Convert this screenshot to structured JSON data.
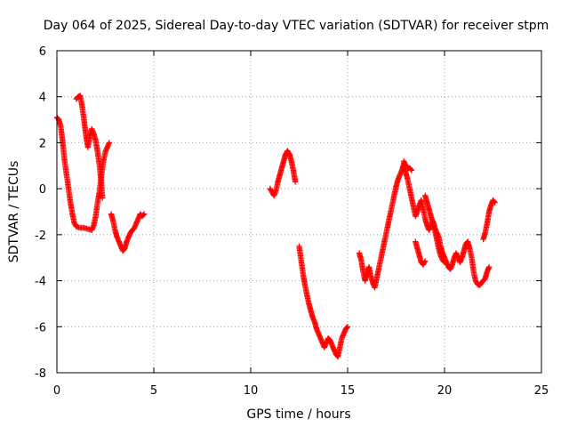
{
  "chart_data": {
    "type": "scatter",
    "title": "Day 064 of 2025, Sidereal Day-to-day VTEC variation (SDTVAR) for receiver stpm",
    "xlabel": "GPS time / hours",
    "ylabel": "SDTVAR / TECUs",
    "xlim": [
      0,
      25
    ],
    "ylim": [
      -8,
      6
    ],
    "xticks": [
      0,
      5,
      10,
      15,
      20,
      25
    ],
    "yticks": [
      -8,
      -6,
      -4,
      -2,
      0,
      2,
      4,
      6
    ],
    "xtick_labels": [
      "0",
      "5",
      "10",
      "15",
      "20",
      "25"
    ],
    "ytick_labels": [
      "-8",
      "-6",
      "-4",
      "-2",
      "0",
      "2",
      "4",
      "6"
    ],
    "grid": true,
    "marker": "+",
    "color": "#ff0000",
    "series": [
      {
        "name": "SDTVAR",
        "segments": [
          [
            [
              0.0,
              3.1
            ],
            [
              0.1,
              3.0
            ],
            [
              0.2,
              2.7
            ],
            [
              0.3,
              2.0
            ],
            [
              0.4,
              1.2
            ],
            [
              0.5,
              0.6
            ],
            [
              0.6,
              0.0
            ],
            [
              0.7,
              -0.6
            ],
            [
              0.8,
              -1.1
            ],
            [
              0.9,
              -1.5
            ],
            [
              1.0,
              -1.65
            ],
            [
              1.2,
              -1.7
            ],
            [
              1.4,
              -1.7
            ],
            [
              1.6,
              -1.75
            ],
            [
              1.8,
              -1.8
            ],
            [
              1.9,
              -1.6
            ],
            [
              2.0,
              -1.2
            ],
            [
              2.1,
              -0.6
            ],
            [
              2.2,
              -0.1
            ],
            [
              2.3,
              0.6
            ],
            [
              2.4,
              1.2
            ],
            [
              2.5,
              1.6
            ],
            [
              2.6,
              1.8
            ],
            [
              2.7,
              2.0
            ]
          ],
          [
            [
              1.0,
              3.9
            ],
            [
              1.1,
              4.0
            ],
            [
              1.2,
              4.05
            ],
            [
              1.3,
              3.6
            ],
            [
              1.4,
              3.0
            ],
            [
              1.5,
              2.3
            ],
            [
              1.6,
              1.8
            ],
            [
              1.7,
              2.3
            ],
            [
              1.8,
              2.6
            ],
            [
              1.9,
              2.4
            ],
            [
              2.0,
              2.1
            ],
            [
              2.1,
              1.6
            ],
            [
              2.2,
              1.0
            ],
            [
              2.3,
              0.2
            ],
            [
              2.35,
              -0.4
            ]
          ],
          [
            [
              2.8,
              -1.1
            ],
            [
              2.9,
              -1.4
            ],
            [
              3.0,
              -1.8
            ],
            [
              3.1,
              -2.1
            ],
            [
              3.2,
              -2.3
            ],
            [
              3.3,
              -2.5
            ],
            [
              3.4,
              -2.7
            ],
            [
              3.5,
              -2.6
            ],
            [
              3.6,
              -2.3
            ],
            [
              3.7,
              -2.1
            ],
            [
              3.8,
              -1.9
            ],
            [
              3.9,
              -1.8
            ],
            [
              4.0,
              -1.7
            ],
            [
              4.1,
              -1.5
            ],
            [
              4.2,
              -1.3
            ],
            [
              4.3,
              -1.1
            ],
            [
              4.4,
              -1.2
            ],
            [
              4.5,
              -1.1
            ]
          ],
          [
            [
              11.0,
              0.0
            ],
            [
              11.1,
              -0.15
            ],
            [
              11.2,
              -0.3
            ],
            [
              11.3,
              -0.1
            ],
            [
              11.4,
              0.3
            ],
            [
              11.5,
              0.6
            ],
            [
              11.6,
              0.9
            ],
            [
              11.7,
              1.2
            ],
            [
              11.8,
              1.5
            ],
            [
              11.9,
              1.65
            ],
            [
              12.0,
              1.5
            ],
            [
              12.1,
              1.2
            ],
            [
              12.2,
              0.8
            ],
            [
              12.3,
              0.3
            ]
          ],
          [
            [
              12.5,
              -2.5
            ],
            [
              12.6,
              -3.1
            ],
            [
              12.7,
              -3.7
            ],
            [
              12.8,
              -4.2
            ],
            [
              12.9,
              -4.6
            ],
            [
              13.0,
              -5.0
            ],
            [
              13.1,
              -5.3
            ],
            [
              13.2,
              -5.6
            ],
            [
              13.3,
              -5.8
            ],
            [
              13.4,
              -6.1
            ],
            [
              13.5,
              -6.3
            ],
            [
              13.6,
              -6.5
            ],
            [
              13.7,
              -6.7
            ],
            [
              13.8,
              -6.9
            ],
            [
              13.9,
              -6.7
            ],
            [
              14.0,
              -6.5
            ],
            [
              14.1,
              -6.6
            ],
            [
              14.2,
              -6.8
            ],
            [
              14.3,
              -7.0
            ],
            [
              14.4,
              -7.2
            ],
            [
              14.5,
              -7.3
            ],
            [
              14.6,
              -6.9
            ],
            [
              14.7,
              -6.5
            ],
            [
              14.8,
              -6.3
            ],
            [
              14.9,
              -6.1
            ],
            [
              15.0,
              -6.0
            ]
          ],
          [
            [
              15.6,
              -2.8
            ],
            [
              15.7,
              -3.1
            ],
            [
              15.8,
              -3.6
            ],
            [
              15.9,
              -4.0
            ],
            [
              16.0,
              -3.7
            ],
            [
              16.1,
              -3.4
            ],
            [
              16.2,
              -3.8
            ],
            [
              16.3,
              -4.1
            ],
            [
              16.4,
              -4.3
            ],
            [
              16.5,
              -3.9
            ],
            [
              16.6,
              -3.5
            ],
            [
              16.7,
              -3.1
            ],
            [
              16.8,
              -2.7
            ],
            [
              16.9,
              -2.3
            ],
            [
              17.0,
              -1.9
            ],
            [
              17.1,
              -1.5
            ],
            [
              17.2,
              -1.1
            ],
            [
              17.3,
              -0.7
            ],
            [
              17.4,
              -0.3
            ],
            [
              17.5,
              0.1
            ],
            [
              17.6,
              0.4
            ],
            [
              17.7,
              0.6
            ],
            [
              17.8,
              0.8
            ],
            [
              17.9,
              1.1
            ],
            [
              18.0,
              0.7
            ],
            [
              18.1,
              0.4
            ],
            [
              18.2,
              0.0
            ],
            [
              18.3,
              -0.4
            ],
            [
              18.4,
              -0.8
            ],
            [
              18.5,
              -1.2
            ],
            [
              18.6,
              -1.0
            ],
            [
              18.7,
              -0.7
            ],
            [
              18.8,
              -0.5
            ],
            [
              18.9,
              -0.9
            ],
            [
              19.0,
              -1.3
            ],
            [
              19.1,
              -1.6
            ],
            [
              19.2,
              -1.8
            ],
            [
              19.3,
              -1.6
            ],
            [
              19.4,
              -1.4
            ],
            [
              19.5,
              -1.7
            ],
            [
              19.6,
              -1.9
            ],
            [
              19.7,
              -2.1
            ],
            [
              19.8,
              -2.5
            ],
            [
              19.9,
              -2.8
            ],
            [
              20.0,
              -3.0
            ],
            [
              20.1,
              -3.2
            ],
            [
              20.2,
              -3.4
            ],
            [
              20.3,
              -3.5
            ],
            [
              20.4,
              -3.3
            ],
            [
              20.5,
              -3.0
            ],
            [
              20.6,
              -2.8
            ],
            [
              20.7,
              -3.0
            ],
            [
              20.8,
              -3.2
            ],
            [
              20.9,
              -3.0
            ],
            [
              21.0,
              -2.7
            ],
            [
              21.1,
              -2.4
            ],
            [
              21.2,
              -2.3
            ],
            [
              21.3,
              -2.6
            ],
            [
              21.4,
              -3.0
            ],
            [
              21.5,
              -3.6
            ],
            [
              21.6,
              -4.0
            ],
            [
              21.7,
              -4.15
            ],
            [
              21.8,
              -4.2
            ],
            [
              21.9,
              -4.1
            ],
            [
              22.0,
              -4.0
            ],
            [
              22.1,
              -3.9
            ],
            [
              22.2,
              -3.6
            ],
            [
              22.3,
              -3.4
            ]
          ],
          [
            [
              17.9,
              1.2
            ],
            [
              18.0,
              1.0
            ],
            [
              18.1,
              0.9
            ],
            [
              18.2,
              0.9
            ],
            [
              18.3,
              0.8
            ]
          ],
          [
            [
              18.5,
              -2.3
            ],
            [
              18.6,
              -2.6
            ],
            [
              18.7,
              -2.9
            ],
            [
              18.8,
              -3.2
            ],
            [
              18.9,
              -3.3
            ],
            [
              19.0,
              -3.15
            ]
          ],
          [
            [
              19.0,
              -0.3
            ],
            [
              19.1,
              -0.6
            ],
            [
              19.2,
              -0.9
            ],
            [
              19.3,
              -1.2
            ],
            [
              19.4,
              -1.5
            ],
            [
              19.5,
              -1.8
            ],
            [
              19.6,
              -2.2
            ],
            [
              19.7,
              -2.6
            ],
            [
              19.8,
              -2.9
            ],
            [
              19.9,
              -3.1
            ],
            [
              20.0,
              -3.2
            ]
          ],
          [
            [
              22.0,
              -2.2
            ],
            [
              22.1,
              -1.9
            ],
            [
              22.2,
              -1.5
            ],
            [
              22.3,
              -1.0
            ],
            [
              22.4,
              -0.7
            ],
            [
              22.5,
              -0.5
            ],
            [
              22.6,
              -0.6
            ]
          ]
        ]
      }
    ]
  }
}
